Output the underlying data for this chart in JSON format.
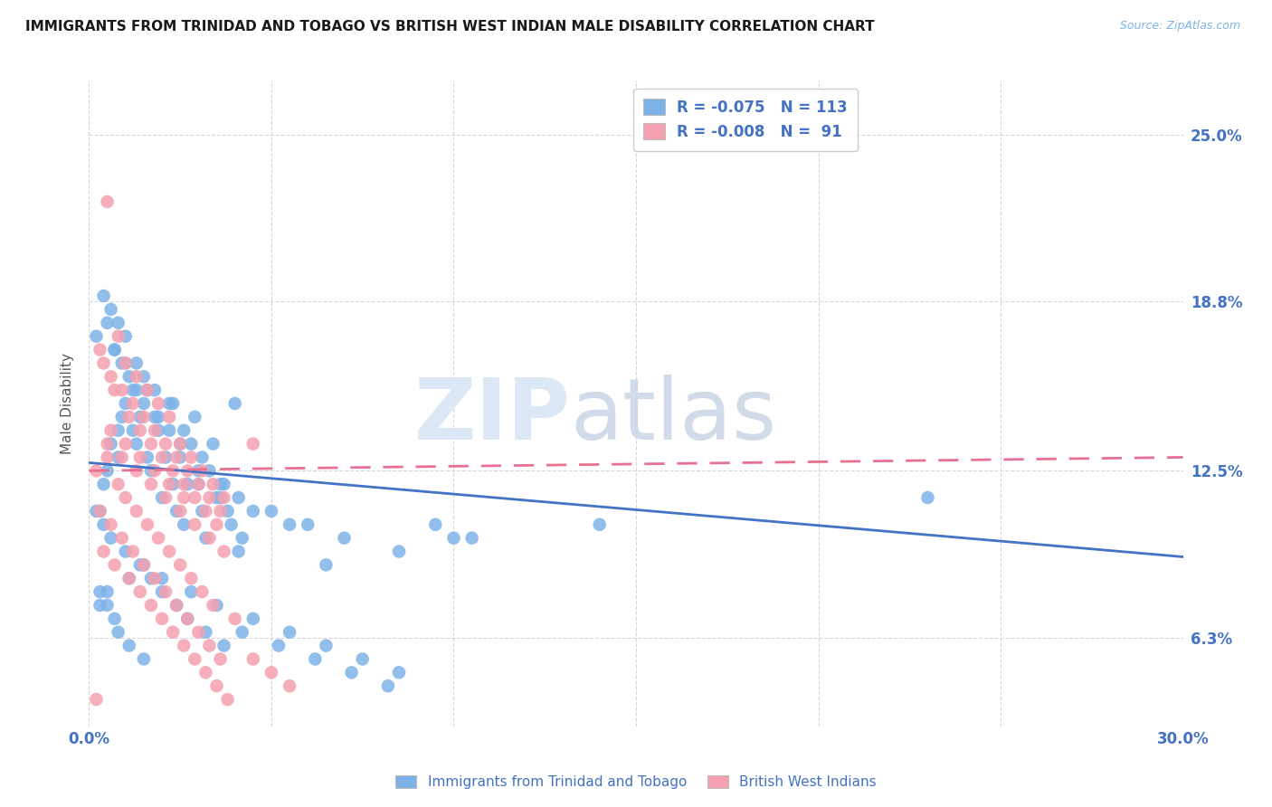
{
  "title": "IMMIGRANTS FROM TRINIDAD AND TOBAGO VS BRITISH WEST INDIAN MALE DISABILITY CORRELATION CHART",
  "source": "Source: ZipAtlas.com",
  "ylabel": "Male Disability",
  "ytick_labels": [
    "6.3%",
    "12.5%",
    "18.8%",
    "25.0%"
  ],
  "ytick_values": [
    6.3,
    12.5,
    18.8,
    25.0
  ],
  "xmin": 0.0,
  "xmax": 30.0,
  "ymin": 3.0,
  "ymax": 27.0,
  "r1": -0.075,
  "n1": 113,
  "r2": -0.008,
  "n2": 91,
  "color_blue": "#7EB3E8",
  "color_pink": "#F5A0B0",
  "color_blue_line": "#4472C4",
  "color_pink_line": "#E87090",
  "blue_line_y_start": 12.8,
  "blue_line_y_end": 9.3,
  "pink_line_y_start": 12.5,
  "pink_line_y_end": 13.0,
  "blue_scatter_x": [
    0.5,
    0.8,
    1.2,
    1.5,
    1.0,
    0.7,
    0.9,
    1.3,
    1.8,
    2.2,
    2.5,
    3.0,
    3.5,
    4.0,
    5.0,
    6.0,
    7.0,
    8.5,
    10.0,
    14.0,
    0.3,
    0.4,
    0.6,
    0.8,
    1.0,
    1.1,
    1.3,
    1.4,
    1.6,
    1.7,
    1.9,
    2.0,
    2.1,
    2.3,
    2.4,
    2.6,
    2.7,
    2.8,
    2.9,
    3.1,
    3.2,
    3.3,
    3.4,
    3.6,
    3.7,
    3.8,
    3.9,
    4.1,
    4.2,
    4.5,
    5.5,
    6.5,
    0.2,
    0.5,
    0.7,
    0.9,
    1.2,
    1.5,
    1.8,
    2.2,
    2.5,
    3.0,
    0.4,
    0.6,
    0.8,
    1.0,
    1.3,
    1.6,
    1.9,
    2.3,
    2.6,
    3.1,
    3.6,
    4.1,
    0.3,
    0.5,
    0.7,
    1.1,
    1.4,
    1.7,
    2.0,
    2.4,
    2.7,
    3.2,
    3.7,
    4.2,
    5.2,
    6.2,
    7.2,
    8.2,
    23.0,
    0.2,
    0.4,
    0.6,
    1.0,
    1.5,
    2.0,
    2.8,
    3.5,
    4.5,
    5.5,
    6.5,
    7.5,
    8.5,
    9.5,
    10.5,
    0.3,
    0.5,
    0.8,
    1.1,
    1.5
  ],
  "blue_scatter_y": [
    12.5,
    13.0,
    14.0,
    15.0,
    16.5,
    17.0,
    14.5,
    13.5,
    15.5,
    14.0,
    13.0,
    12.0,
    11.5,
    15.0,
    11.0,
    10.5,
    10.0,
    9.5,
    10.0,
    10.5,
    11.0,
    12.0,
    13.5,
    14.0,
    15.0,
    16.0,
    15.5,
    14.5,
    13.0,
    12.5,
    14.0,
    11.5,
    13.0,
    12.0,
    11.0,
    10.5,
    12.0,
    13.5,
    14.5,
    11.0,
    10.0,
    12.5,
    13.5,
    11.5,
    12.0,
    11.0,
    10.5,
    9.5,
    10.0,
    11.0,
    10.5,
    9.0,
    17.5,
    18.0,
    17.0,
    16.5,
    15.5,
    16.0,
    14.5,
    15.0,
    13.5,
    12.5,
    19.0,
    18.5,
    18.0,
    17.5,
    16.5,
    15.5,
    14.5,
    15.0,
    14.0,
    13.0,
    12.0,
    11.5,
    7.5,
    8.0,
    7.0,
    8.5,
    9.0,
    8.5,
    8.0,
    7.5,
    7.0,
    6.5,
    6.0,
    6.5,
    6.0,
    5.5,
    5.0,
    4.5,
    11.5,
    11.0,
    10.5,
    10.0,
    9.5,
    9.0,
    8.5,
    8.0,
    7.5,
    7.0,
    6.5,
    6.0,
    5.5,
    5.0,
    10.5,
    10.0,
    8.0,
    7.5,
    6.5,
    6.0,
    5.5
  ],
  "pink_scatter_x": [
    0.5,
    0.8,
    1.0,
    1.3,
    1.6,
    1.9,
    2.2,
    2.5,
    2.8,
    3.1,
    3.4,
    3.7,
    0.3,
    0.6,
    0.9,
    1.2,
    1.5,
    1.8,
    2.1,
    2.4,
    2.7,
    3.0,
    3.3,
    3.6,
    4.5,
    0.4,
    0.7,
    1.1,
    1.4,
    1.7,
    2.0,
    2.3,
    2.6,
    2.9,
    3.2,
    3.5,
    0.2,
    0.5,
    0.8,
    1.0,
    1.3,
    1.6,
    1.9,
    2.2,
    2.5,
    2.8,
    3.1,
    3.4,
    0.3,
    0.6,
    0.9,
    1.2,
    1.5,
    1.8,
    2.1,
    2.4,
    2.7,
    3.0,
    3.3,
    3.6,
    4.0,
    4.5,
    5.0,
    5.5,
    0.4,
    0.7,
    1.1,
    1.4,
    1.7,
    2.0,
    2.3,
    2.6,
    2.9,
    3.2,
    3.5,
    3.8,
    0.5,
    0.9,
    1.3,
    1.7,
    2.1,
    2.5,
    2.9,
    3.3,
    3.7,
    0.6,
    1.0,
    1.4,
    1.8,
    2.2,
    2.6,
    0.2
  ],
  "pink_scatter_y": [
    22.5,
    17.5,
    16.5,
    16.0,
    15.5,
    15.0,
    14.5,
    13.5,
    13.0,
    12.5,
    12.0,
    11.5,
    17.0,
    16.0,
    15.5,
    15.0,
    14.5,
    14.0,
    13.5,
    13.0,
    12.5,
    12.0,
    11.5,
    11.0,
    13.5,
    16.5,
    15.5,
    14.5,
    14.0,
    13.5,
    13.0,
    12.5,
    12.0,
    11.5,
    11.0,
    10.5,
    12.5,
    13.0,
    12.0,
    11.5,
    11.0,
    10.5,
    10.0,
    9.5,
    9.0,
    8.5,
    8.0,
    7.5,
    11.0,
    10.5,
    10.0,
    9.5,
    9.0,
    8.5,
    8.0,
    7.5,
    7.0,
    6.5,
    6.0,
    5.5,
    7.0,
    5.5,
    5.0,
    4.5,
    9.5,
    9.0,
    8.5,
    8.0,
    7.5,
    7.0,
    6.5,
    6.0,
    5.5,
    5.0,
    4.5,
    4.0,
    13.5,
    13.0,
    12.5,
    12.0,
    11.5,
    11.0,
    10.5,
    10.0,
    9.5,
    14.0,
    13.5,
    13.0,
    12.5,
    12.0,
    11.5,
    4.0
  ]
}
